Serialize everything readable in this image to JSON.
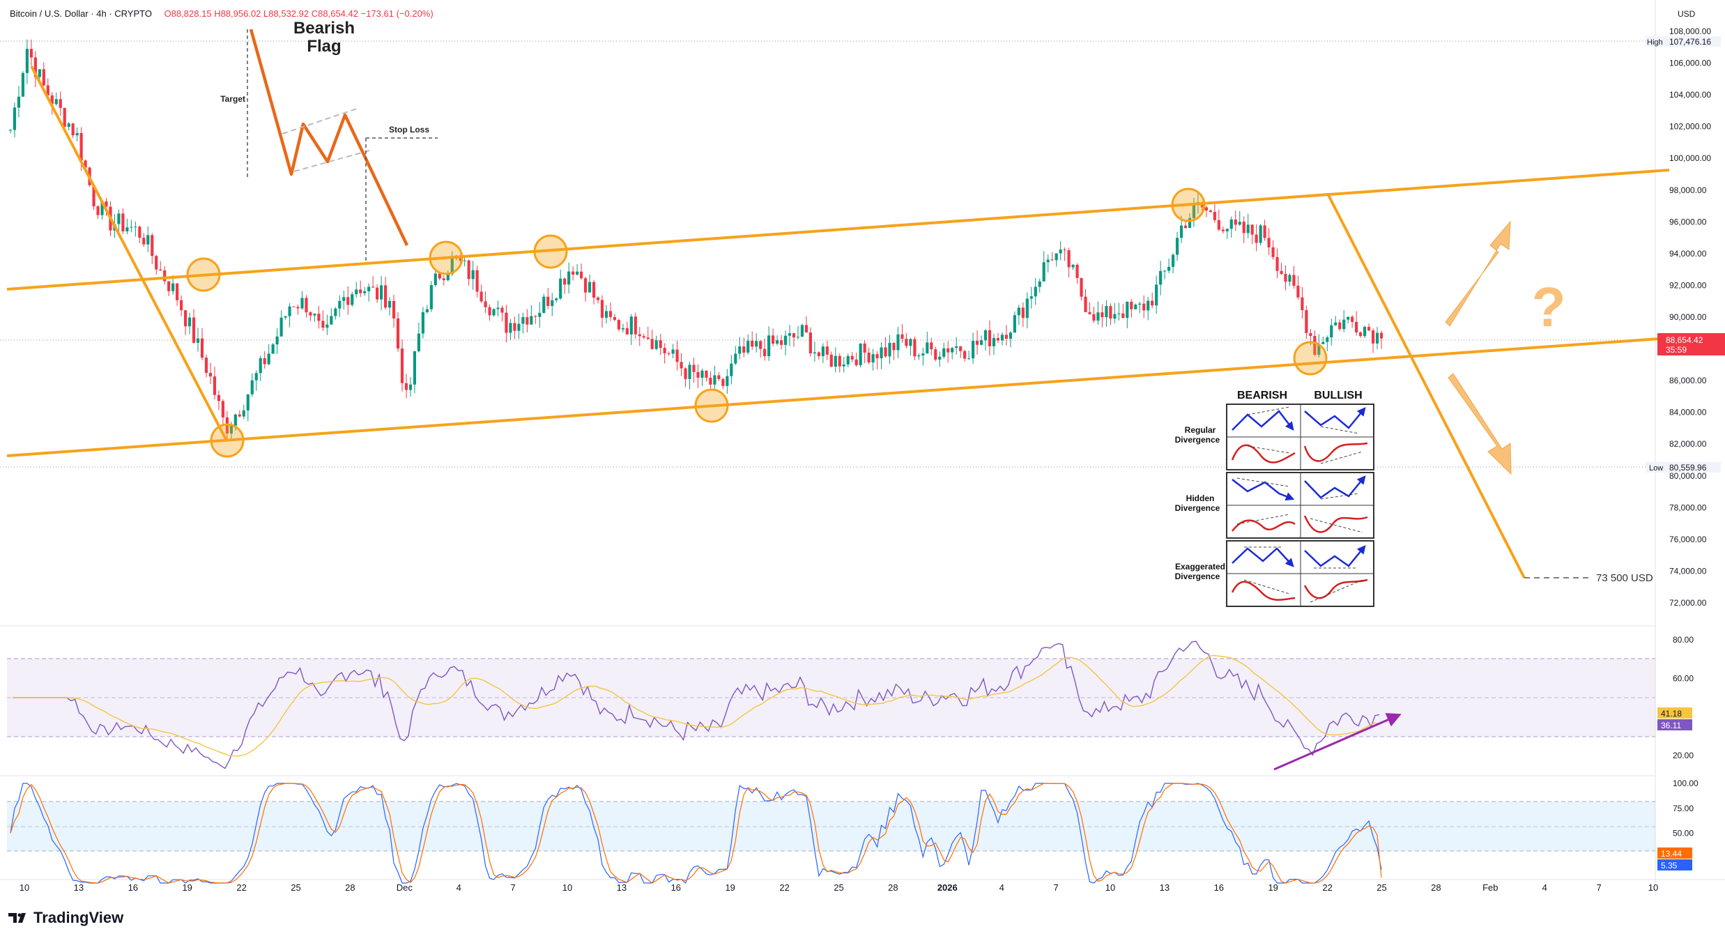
{
  "header": {
    "symbol": "Bitcoin / U.S. Dollar · 4h · CRYPTO",
    "open": "O88,828.15",
    "high": "H88,956.02",
    "low": "L88,532.92",
    "close": "C88,654.42",
    "change": "−173.61 (−0.20%)"
  },
  "currency_label": "USD",
  "brand": "TradingView",
  "price_axis": {
    "ticks": [
      "108,000.00",
      "106,000.00",
      "104,000.00",
      "102,000.00",
      "100,000.00",
      "98,000.00",
      "96,000.00",
      "94,000.00",
      "92,000.00",
      "90,000.00",
      "88,000.00",
      "86,000.00",
      "84,000.00",
      "82,000.00",
      "80,000.00",
      "78,000.00",
      "76,000.00",
      "74,000.00",
      "72,000.00"
    ],
    "high_label": "High",
    "high_value": "107,476.16",
    "low_label": "Low",
    "low_value": "80,559.96",
    "current_price": "88,654.42",
    "countdown": "35:59"
  },
  "rsi_axis": {
    "ticks": [
      "80.00",
      "60.00",
      "20.00"
    ],
    "rsi_value": "41.18",
    "ma_value": "36.11"
  },
  "stoch_axis": {
    "ticks": [
      "100.00",
      "75.00",
      "50.00"
    ],
    "k_value": "13.44",
    "d_value": "5.35"
  },
  "date_axis": [
    "10",
    "13",
    "16",
    "19",
    "22",
    "25",
    "28",
    "Dec",
    "4",
    "7",
    "10",
    "13",
    "16",
    "19",
    "22",
    "25",
    "28",
    "2026",
    "4",
    "7",
    "10",
    "13",
    "16",
    "19",
    "22",
    "25",
    "28",
    "Feb",
    "4",
    "7",
    "10"
  ],
  "annotations": {
    "bearish_flag": [
      "Bearish",
      "Flag"
    ],
    "target": "Target",
    "stop_loss": "Stop Loss",
    "target_price": "73 500 USD",
    "question": "?"
  },
  "divergence_table": {
    "col_bearish": "BEARISH",
    "col_bullish": "BULLISH",
    "rows": [
      [
        "Regular",
        "Divergence"
      ],
      [
        "Hidden",
        "Divergence"
      ],
      [
        "Exaggerated",
        "Divergence"
      ]
    ]
  },
  "colors": {
    "up": "#089981",
    "down": "#f23645",
    "channel": "#f7a21b",
    "flag": "#e8681a",
    "rsi": "#7e57c2",
    "rsi_ma": "#f5c542",
    "stoch_k": "#2962ff",
    "stoch_d": "#ff6d00",
    "rsi_band": "#7e57c2",
    "stoch_band": "#2196f3",
    "arrow_fill": "#f8c078",
    "bull_arrow": "#1a2bd4",
    "bear_wave": "#d42020",
    "div_arrow": "#9c27b0"
  },
  "chart_data": {
    "type": "candlestick",
    "symbol": "Bitcoin / U.S. Dollar",
    "timeframe": "4h",
    "key_prices_usd": {
      "high": 107476.16,
      "low": 80559.96,
      "current": 88654.42,
      "projected_target": 73500
    },
    "price_path_daily_close": [
      [
        101800,
        107000,
        104500,
        103000,
        101500,
        97500,
        96000,
        95800,
        95200,
        93000,
        91500,
        89000,
        86500,
        83000,
        84500,
        86500,
        88500,
        91000,
        90800,
        88500,
        91000,
        92000,
        91500,
        91200,
        84500,
        90500,
        92800,
        93600,
        92500,
        90800,
        89500,
        90000,
        90500,
        91800,
        93300,
        92000,
        89800,
        89500,
        89500,
        88500,
        87500,
        86500,
        86000,
        85500,
        87500,
        88000,
        88200,
        88500,
        89000,
        87500,
        87300,
        87600,
        87800,
        87900,
        88500,
        87800,
        87900,
        88200,
        88000,
        88600,
        89000,
        90000,
        92000,
        94000,
        93500,
        91000,
        89800,
        90500,
        90300,
        91000,
        93000,
        96000,
        97000,
        96200,
        95500,
        95300,
        95200,
        92800,
        91000,
        88000,
        89500,
        89800,
        89400,
        88654
      ]
    ],
    "rsi": {
      "upper": 70,
      "mid": 50,
      "lower": 30,
      "last_rsi": 41.18,
      "last_ma": 36.11
    },
    "stochastic": {
      "upper": 80,
      "mid": 50,
      "lower": 20,
      "last_k": 13.44,
      "last_d": 5.35
    }
  }
}
